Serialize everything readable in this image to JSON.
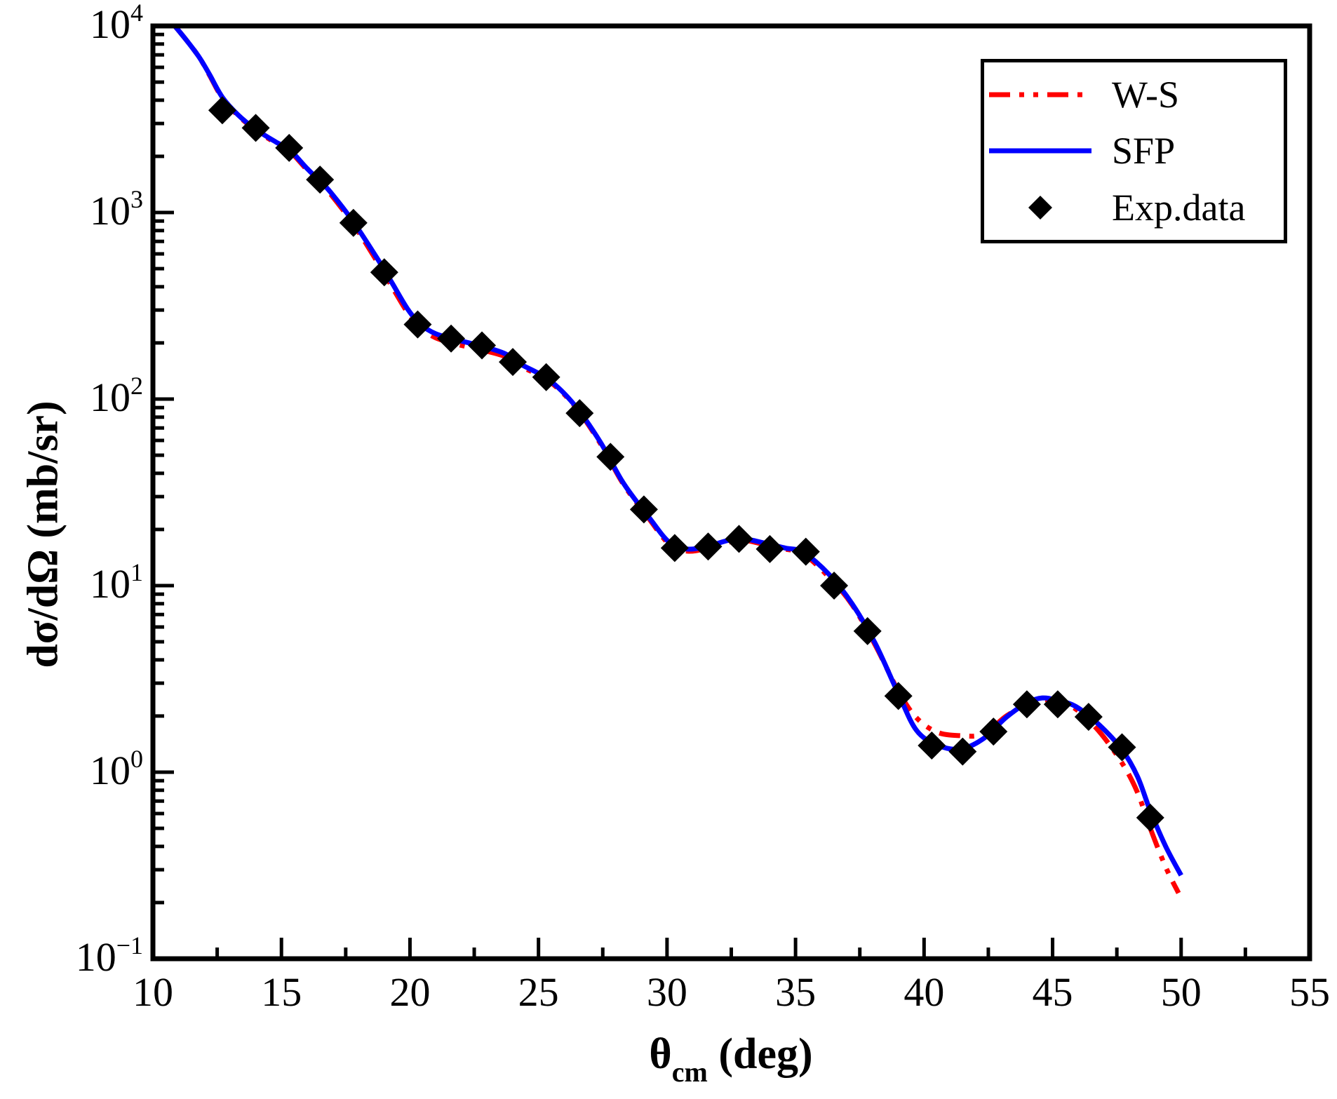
{
  "figure": {
    "background": "#ffffff",
    "frame_color": "#000000"
  },
  "axes": {
    "x": {
      "title_theta": "θ",
      "title_sub": "cm",
      "title_rest": " (deg)",
      "min": 10,
      "max": 55,
      "major_tick_values": [
        10,
        15,
        20,
        25,
        30,
        35,
        40,
        45,
        50,
        55
      ],
      "major_tick_labels": [
        "10",
        "15",
        "20",
        "25",
        "30",
        "35",
        "40",
        "45",
        "50",
        "55"
      ],
      "minor_tick_values": [
        12.5,
        17.5,
        22.5,
        27.5,
        32.5,
        37.5,
        42.5,
        47.5,
        52.5
      ]
    },
    "y": {
      "title": "dσ/dΩ (mb/sr)",
      "scale": "log",
      "base_label": "10",
      "major_tick_exponents": [
        4,
        3,
        2,
        1,
        0,
        -1
      ],
      "minor_mantissas": [
        2,
        3,
        4,
        5,
        6,
        7,
        8,
        9
      ]
    }
  },
  "legend": {
    "items": [
      {
        "label": "W-S",
        "marker": "dash-dot-dot-line",
        "color": "#ff0000"
      },
      {
        "label": "SFP",
        "marker": "solid-line",
        "color": "#0000ff"
      },
      {
        "label": "Exp.data",
        "marker": "diamond",
        "color": "#000000"
      }
    ]
  },
  "chart_data": {
    "type": "line",
    "title": "",
    "xlabel": "θ_cm (deg)",
    "ylabel": "dσ/dΩ (mb/sr)",
    "x_range": [
      10,
      55
    ],
    "y_scale": "log10",
    "y_range": [
      0.1,
      10000
    ],
    "grid": false,
    "legend_position": "top-right",
    "series": [
      {
        "name": "W-S",
        "style": "dash-dot-dot",
        "color": "#ff0000",
        "points": [
          [
            10.85,
            10000
          ],
          [
            11.3,
            8400
          ],
          [
            11.8,
            6800
          ],
          [
            12.2,
            5450
          ],
          [
            12.7,
            4100
          ],
          [
            13.3,
            3320
          ],
          [
            14.0,
            2760
          ],
          [
            14.8,
            2350
          ],
          [
            15.3,
            2150
          ],
          [
            16.0,
            1690
          ],
          [
            16.5,
            1440
          ],
          [
            16.9,
            1260
          ],
          [
            17.8,
            865
          ],
          [
            18.7,
            552
          ],
          [
            19.3,
            400
          ],
          [
            19.9,
            292
          ],
          [
            20.4,
            241
          ],
          [
            21.0,
            213
          ],
          [
            21.8,
            197
          ],
          [
            22.8,
            183
          ],
          [
            23.7,
            169
          ],
          [
            24.3,
            150
          ],
          [
            25.4,
            125
          ],
          [
            26.4,
            92
          ],
          [
            27.4,
            58
          ],
          [
            28.3,
            35
          ],
          [
            29.3,
            22.8
          ],
          [
            30.1,
            16.6
          ],
          [
            30.8,
            15.3
          ],
          [
            31.6,
            15.9
          ],
          [
            32.4,
            17.1
          ],
          [
            33.0,
            17.5
          ],
          [
            33.8,
            16.6
          ],
          [
            34.6,
            15.7
          ],
          [
            35.3,
            14.8
          ],
          [
            36.3,
            11.1
          ],
          [
            37.2,
            7.9
          ],
          [
            38.1,
            4.8
          ],
          [
            39.0,
            2.72
          ],
          [
            39.7,
            1.96
          ],
          [
            40.5,
            1.64
          ],
          [
            41.4,
            1.57
          ],
          [
            42.3,
            1.6
          ],
          [
            43.2,
            2.0
          ],
          [
            44.0,
            2.3
          ],
          [
            44.6,
            2.44
          ],
          [
            45.2,
            2.38
          ],
          [
            45.9,
            2.18
          ],
          [
            46.8,
            1.66
          ],
          [
            47.7,
            1.12
          ],
          [
            48.3,
            0.78
          ],
          [
            48.8,
            0.5
          ],
          [
            49.4,
            0.31
          ],
          [
            49.9,
            0.225
          ]
        ]
      },
      {
        "name": "SFP",
        "style": "solid",
        "color": "#0000ff",
        "points": [
          [
            10.85,
            10000
          ],
          [
            11.3,
            8400
          ],
          [
            11.8,
            6800
          ],
          [
            12.2,
            5500
          ],
          [
            12.7,
            4150
          ],
          [
            13.3,
            3350
          ],
          [
            14.0,
            2790
          ],
          [
            14.8,
            2380
          ],
          [
            15.3,
            2180
          ],
          [
            16.0,
            1720
          ],
          [
            16.5,
            1470
          ],
          [
            16.9,
            1290
          ],
          [
            17.8,
            890
          ],
          [
            18.7,
            575
          ],
          [
            19.3,
            420
          ],
          [
            19.9,
            305
          ],
          [
            20.4,
            252
          ],
          [
            21.0,
            224
          ],
          [
            21.8,
            208
          ],
          [
            22.8,
            192
          ],
          [
            23.7,
            175
          ],
          [
            24.3,
            154
          ],
          [
            25.4,
            127
          ],
          [
            26.4,
            93
          ],
          [
            27.4,
            59
          ],
          [
            28.3,
            35.5
          ],
          [
            29.3,
            23.2
          ],
          [
            30.1,
            17.0
          ],
          [
            30.8,
            15.7
          ],
          [
            31.6,
            16.3
          ],
          [
            32.4,
            17.5
          ],
          [
            33.0,
            17.8
          ],
          [
            33.8,
            16.9
          ],
          [
            34.6,
            15.9
          ],
          [
            35.3,
            15.1
          ],
          [
            36.3,
            11.5
          ],
          [
            37.2,
            8.0
          ],
          [
            38.1,
            4.9
          ],
          [
            39.0,
            2.63
          ],
          [
            39.7,
            1.68
          ],
          [
            40.5,
            1.4
          ],
          [
            41.4,
            1.33
          ],
          [
            42.3,
            1.51
          ],
          [
            43.2,
            1.97
          ],
          [
            44.0,
            2.35
          ],
          [
            44.6,
            2.5
          ],
          [
            45.2,
            2.42
          ],
          [
            45.9,
            2.25
          ],
          [
            46.8,
            1.8
          ],
          [
            47.7,
            1.32
          ],
          [
            48.3,
            0.95
          ],
          [
            48.8,
            0.62
          ],
          [
            49.4,
            0.4
          ],
          [
            50.0,
            0.28
          ]
        ]
      },
      {
        "name": "Exp.data",
        "style": "diamond-markers",
        "color": "#000000",
        "points": [
          [
            12.7,
            3530
          ],
          [
            14.0,
            2840
          ],
          [
            15.3,
            2220
          ],
          [
            16.5,
            1500
          ],
          [
            17.8,
            880
          ],
          [
            19.0,
            478
          ],
          [
            20.3,
            251
          ],
          [
            21.6,
            211
          ],
          [
            22.8,
            194
          ],
          [
            24.0,
            158
          ],
          [
            25.3,
            131
          ],
          [
            26.6,
            84
          ],
          [
            27.8,
            49
          ],
          [
            29.1,
            25.6
          ],
          [
            30.3,
            15.9
          ],
          [
            31.6,
            16.2
          ],
          [
            32.8,
            17.8
          ],
          [
            34.0,
            15.7
          ],
          [
            35.4,
            15.2
          ],
          [
            36.5,
            10.0
          ],
          [
            37.8,
            5.7
          ],
          [
            39.0,
            2.56
          ],
          [
            40.3,
            1.39
          ],
          [
            41.5,
            1.29
          ],
          [
            42.7,
            1.65
          ],
          [
            44.0,
            2.31
          ],
          [
            45.2,
            2.31
          ],
          [
            46.4,
            1.98
          ],
          [
            47.7,
            1.36
          ],
          [
            48.8,
            0.57
          ]
        ]
      }
    ]
  }
}
